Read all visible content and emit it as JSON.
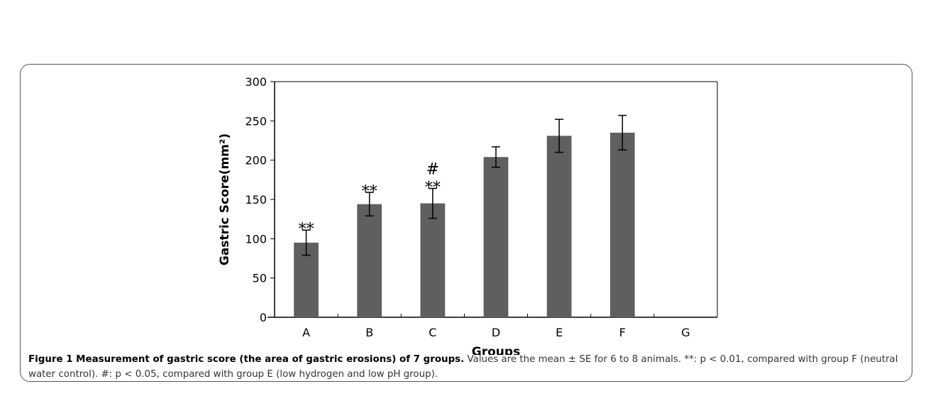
{
  "chart_data": {
    "type": "bar",
    "categories": [
      "A",
      "B",
      "C",
      "D",
      "E",
      "F",
      "G"
    ],
    "values": [
      95,
      144,
      145,
      204,
      231,
      235,
      0
    ],
    "error": [
      16,
      15,
      19,
      13,
      21,
      22,
      0
    ],
    "annotations": [
      "**",
      "**",
      "#\n**",
      "",
      "",
      "",
      ""
    ],
    "xlabel": "Groups",
    "ylabel": "Gastric Score(mm²)",
    "ylim": [
      0,
      300
    ],
    "yticks": [
      0,
      50,
      100,
      150,
      200,
      250,
      300
    ],
    "grid": false,
    "bar_color": "#5f5f5f"
  },
  "caption": {
    "title": "Figure 1 Measurement of gastric score (the area of gastric erosions) of 7 groups.",
    "text": " Values are the mean ± SE for 6 to 8 animals. **: p < 0.01, compared with group F (neutral water control). #: p < 0.05, compared with group E (low hydrogen and low pH group)."
  }
}
